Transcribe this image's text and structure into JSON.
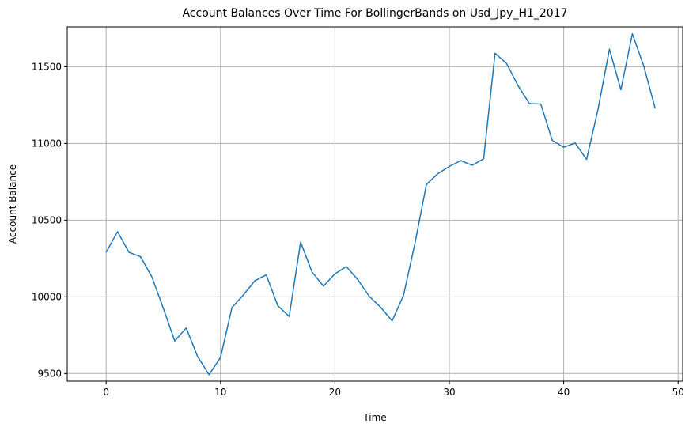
{
  "chart_data": {
    "type": "line",
    "title": "Account Balances Over Time For BollingerBands on Usd_Jpy_H1_2017",
    "xlabel": "Time",
    "ylabel": "Account Balance",
    "xlim": [
      -3.4,
      50.4
    ],
    "ylim": [
      9450,
      11760
    ],
    "xticks": [
      0,
      10,
      20,
      30,
      40,
      50
    ],
    "yticks": [
      9500,
      10000,
      10500,
      11000,
      11500
    ],
    "grid": true,
    "colors": {
      "line": "#1f77b4",
      "grid": "#b0b0b0"
    },
    "x": [
      0,
      1,
      2,
      3,
      4,
      5,
      6,
      7,
      8,
      9,
      10,
      11,
      12,
      13,
      14,
      15,
      16,
      17,
      18,
      19,
      20,
      21,
      22,
      23,
      24,
      25,
      26,
      27,
      28,
      29,
      30,
      31,
      32,
      33,
      34,
      35,
      36,
      37,
      38,
      39,
      40,
      41,
      42,
      43,
      44,
      45,
      46,
      47,
      48
    ],
    "series": [
      {
        "values": [
          10290,
          10425,
          10290,
          10262,
          10130,
          9925,
          9712,
          9797,
          9610,
          9492,
          9605,
          9930,
          10012,
          10105,
          10143,
          9943,
          9872,
          10356,
          10162,
          10070,
          10150,
          10197,
          10112,
          10003,
          9932,
          9843,
          10010,
          10350,
          10733,
          10803,
          10850,
          10888,
          10858,
          10900,
          11588,
          11522,
          11378,
          11260,
          11257,
          11020,
          10975,
          11003,
          10896,
          11223,
          11615,
          11350,
          11715,
          11505,
          11228
        ]
      }
    ]
  }
}
